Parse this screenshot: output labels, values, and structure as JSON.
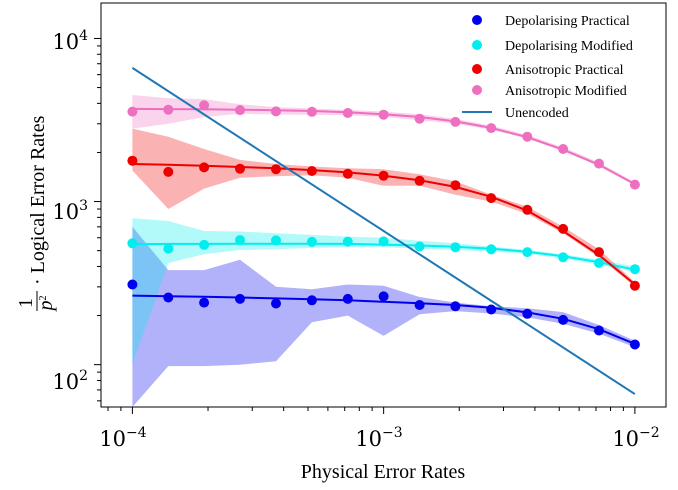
{
  "chart_data": {
    "type": "scatter",
    "xscale": "log",
    "yscale": "log",
    "xlim": [
      7.5e-05,
      0.0133
    ],
    "ylim": [
      55,
      16500
    ],
    "xlabel": "Physical Error Rates",
    "ylabel": {
      "fraction_numerator": "1",
      "fraction_denominator": "p",
      "fraction_denominator_exponent": "2",
      "text": "· Logical Error Rates"
    },
    "x_ticks": [
      {
        "value": 0.0001,
        "base": "10",
        "exponent": "−4"
      },
      {
        "value": 0.001,
        "base": "10",
        "exponent": "−3"
      },
      {
        "value": 0.01,
        "base": "10",
        "exponent": "−2"
      }
    ],
    "y_ticks": [
      {
        "value": 100,
        "base": "10",
        "exponent": "2"
      },
      {
        "value": 1000,
        "base": "10",
        "exponent": "3"
      },
      {
        "value": 10000,
        "base": "10",
        "exponent": "4"
      }
    ],
    "grid": false,
    "legend_position": "top-right",
    "x": [
      0.0001,
      0.000139,
      0.000193,
      0.000268,
      0.000373,
      0.000518,
      0.00072,
      0.001,
      0.00139,
      0.00193,
      0.00268,
      0.00373,
      0.00518,
      0.0072,
      0.01
    ],
    "series": [
      {
        "name": "Depolarising Practical",
        "color": "#0000ee",
        "points": [
          310,
          258,
          240,
          253,
          237,
          248,
          253,
          262,
          232,
          228,
          218,
          205,
          188,
          162,
          133
        ],
        "fit": [
          265,
          263,
          261,
          258,
          255,
          252,
          248,
          243,
          238,
          232,
          223,
          209,
          191,
          165,
          134
        ],
        "band_low": [
          55,
          98,
          98,
          100,
          105,
          182,
          200,
          150,
          204,
          213,
          206,
          195,
          178,
          155,
          128
        ],
        "band_high": [
          700,
          380,
          380,
          440,
          300,
          290,
          310,
          305,
          260,
          240,
          228,
          222,
          210,
          175,
          140
        ]
      },
      {
        "name": "Depolarising Modified",
        "color": "#00eeee",
        "points": [
          555,
          515,
          542,
          580,
          578,
          566,
          568,
          570,
          530,
          525,
          510,
          490,
          455,
          420,
          385
        ],
        "fit": [
          548,
          550,
          550,
          552,
          552,
          552,
          550,
          545,
          538,
          528,
          514,
          493,
          462,
          425,
          382
        ],
        "band_low": [
          100,
          420,
          475,
          505,
          510,
          520,
          525,
          525,
          515,
          505,
          495,
          478,
          448,
          410,
          370
        ],
        "band_high": [
          790,
          760,
          660,
          655,
          640,
          625,
          610,
          600,
          575,
          555,
          530,
          505,
          475,
          440,
          400
        ]
      },
      {
        "name": "Anisotropic Practical",
        "color": "#ee0000",
        "points": [
          1780,
          1520,
          1620,
          1590,
          1580,
          1540,
          1480,
          1440,
          1340,
          1260,
          1050,
          890,
          680,
          490,
          305
        ],
        "fit": [
          1700,
          1680,
          1660,
          1630,
          1600,
          1560,
          1510,
          1440,
          1350,
          1230,
          1070,
          880,
          660,
          470,
          310
        ],
        "band_low": [
          1550,
          900,
          1200,
          1400,
          1430,
          1450,
          1400,
          1250,
          1250,
          1100,
          1000,
          840,
          640,
          455,
          300
        ],
        "band_high": [
          2800,
          2500,
          2100,
          1800,
          1700,
          1640,
          1600,
          1580,
          1470,
          1330,
          1100,
          930,
          700,
          510,
          320
        ]
      },
      {
        "name": "Anisotropic Modified",
        "color": "#ee6ec0",
        "points": [
          3560,
          3660,
          3890,
          3640,
          3570,
          3550,
          3490,
          3410,
          3220,
          3080,
          2820,
          2500,
          2100,
          1710,
          1270
        ],
        "fit": [
          3700,
          3690,
          3680,
          3660,
          3630,
          3590,
          3530,
          3430,
          3300,
          3100,
          2830,
          2480,
          2080,
          1680,
          1280
        ],
        "band_low": [
          2800,
          3000,
          3300,
          3450,
          3420,
          3400,
          3380,
          3300,
          3150,
          3000,
          2760,
          2430,
          2040,
          1650,
          1250
        ],
        "band_high": [
          4500,
          4300,
          4250,
          3950,
          3800,
          3720,
          3650,
          3560,
          3430,
          3220,
          2920,
          2560,
          2150,
          1740,
          1310
        ]
      },
      {
        "name": "Unencoded",
        "color": "#1f77b4",
        "line": [
          [
            0.0001,
            6600
          ],
          [
            0.01,
            66
          ]
        ]
      }
    ]
  }
}
